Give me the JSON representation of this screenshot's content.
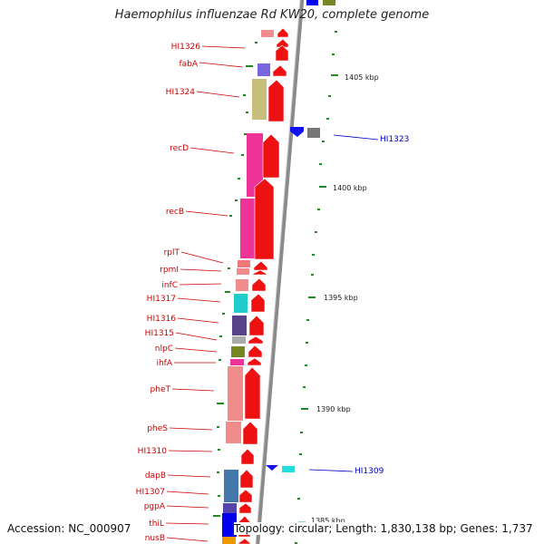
{
  "title": "Haemophilus influenzae Rd KW20, complete genome",
  "footer": {
    "accession": "Accession: NC_000907",
    "topology": "Topology: circular; Length: 1,830,138 bp; Genes: 1,737"
  },
  "colors": {
    "forward_arrow": "#ee1111",
    "reverse_arrow": "#1111ee",
    "backbone": "#8a8a8a",
    "left_label": "#cc0000",
    "right_label": "#0000cc",
    "tick": "#228822"
  },
  "ticks": [
    {
      "label": "1405 kbp"
    },
    {
      "label": "1400 kbp"
    },
    {
      "label": "1395 kbp"
    },
    {
      "label": "1390 kbp"
    },
    {
      "label": "1385 kbp"
    }
  ],
  "left_genes": [
    {
      "name": "HI1326"
    },
    {
      "name": "fabA"
    },
    {
      "name": "HI1324"
    },
    {
      "name": "recD"
    },
    {
      "name": "recB"
    },
    {
      "name": "rplT"
    },
    {
      "name": "rpmI"
    },
    {
      "name": "infC"
    },
    {
      "name": "HI1317"
    },
    {
      "name": "HI1316"
    },
    {
      "name": "HI1315"
    },
    {
      "name": "nlpC"
    },
    {
      "name": "ihfA"
    },
    {
      "name": "pheT"
    },
    {
      "name": "pheS"
    },
    {
      "name": "HI1310"
    },
    {
      "name": "dapB"
    },
    {
      "name": "HI1307"
    },
    {
      "name": "pgpA"
    },
    {
      "name": "thiL"
    },
    {
      "name": "nusB"
    }
  ],
  "right_genes": [
    {
      "name": "HI1323"
    },
    {
      "name": "HI1309"
    }
  ]
}
